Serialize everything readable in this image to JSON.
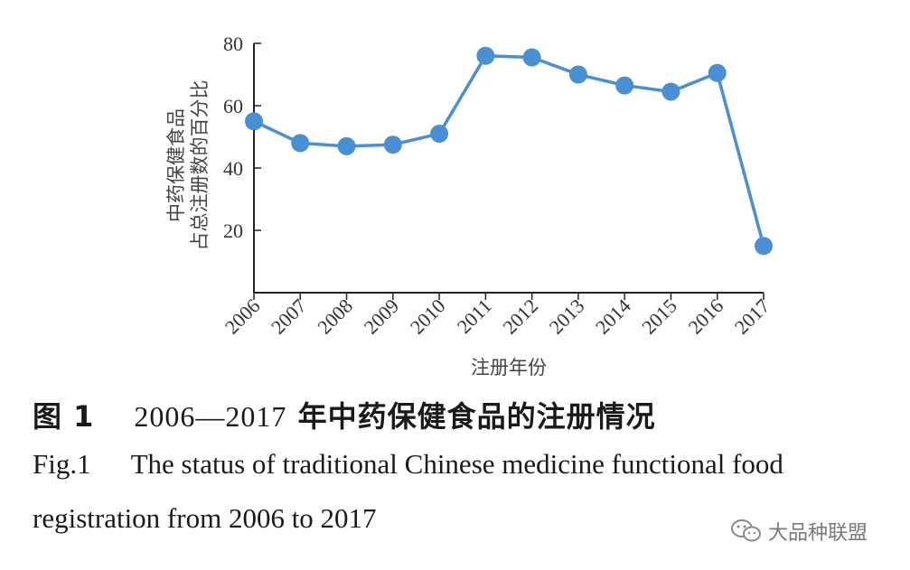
{
  "chart_data": {
    "type": "line",
    "x": [
      "2006",
      "2007",
      "2008",
      "2009",
      "2010",
      "2011",
      "2012",
      "2013",
      "2014",
      "2015",
      "2016",
      "2017"
    ],
    "series": [
      {
        "values": [
          55,
          48,
          47,
          47.5,
          51,
          76,
          75.5,
          70,
          66.5,
          64.5,
          70.5,
          15
        ]
      }
    ],
    "xlabel": "注册年份",
    "ylabel": [
      "中药保健食品",
      "占总注册数的百分比"
    ],
    "yticks": [
      20,
      40,
      60,
      80
    ],
    "ylim": [
      0,
      80
    ],
    "grid": false,
    "line_color": "#4a8fd4"
  },
  "caption": {
    "zh_prefix": "图 1",
    "zh_range": "2006—2017",
    "zh_text": "年中药保健食品的注册情况",
    "en_prefix": "Fig.1",
    "en_line1": "The status of traditional Chinese medicine functional food",
    "en_line2": "registration from 2006 to 2017"
  },
  "watermark": {
    "text": "大品种联盟",
    "icon": "wechat-icon"
  }
}
